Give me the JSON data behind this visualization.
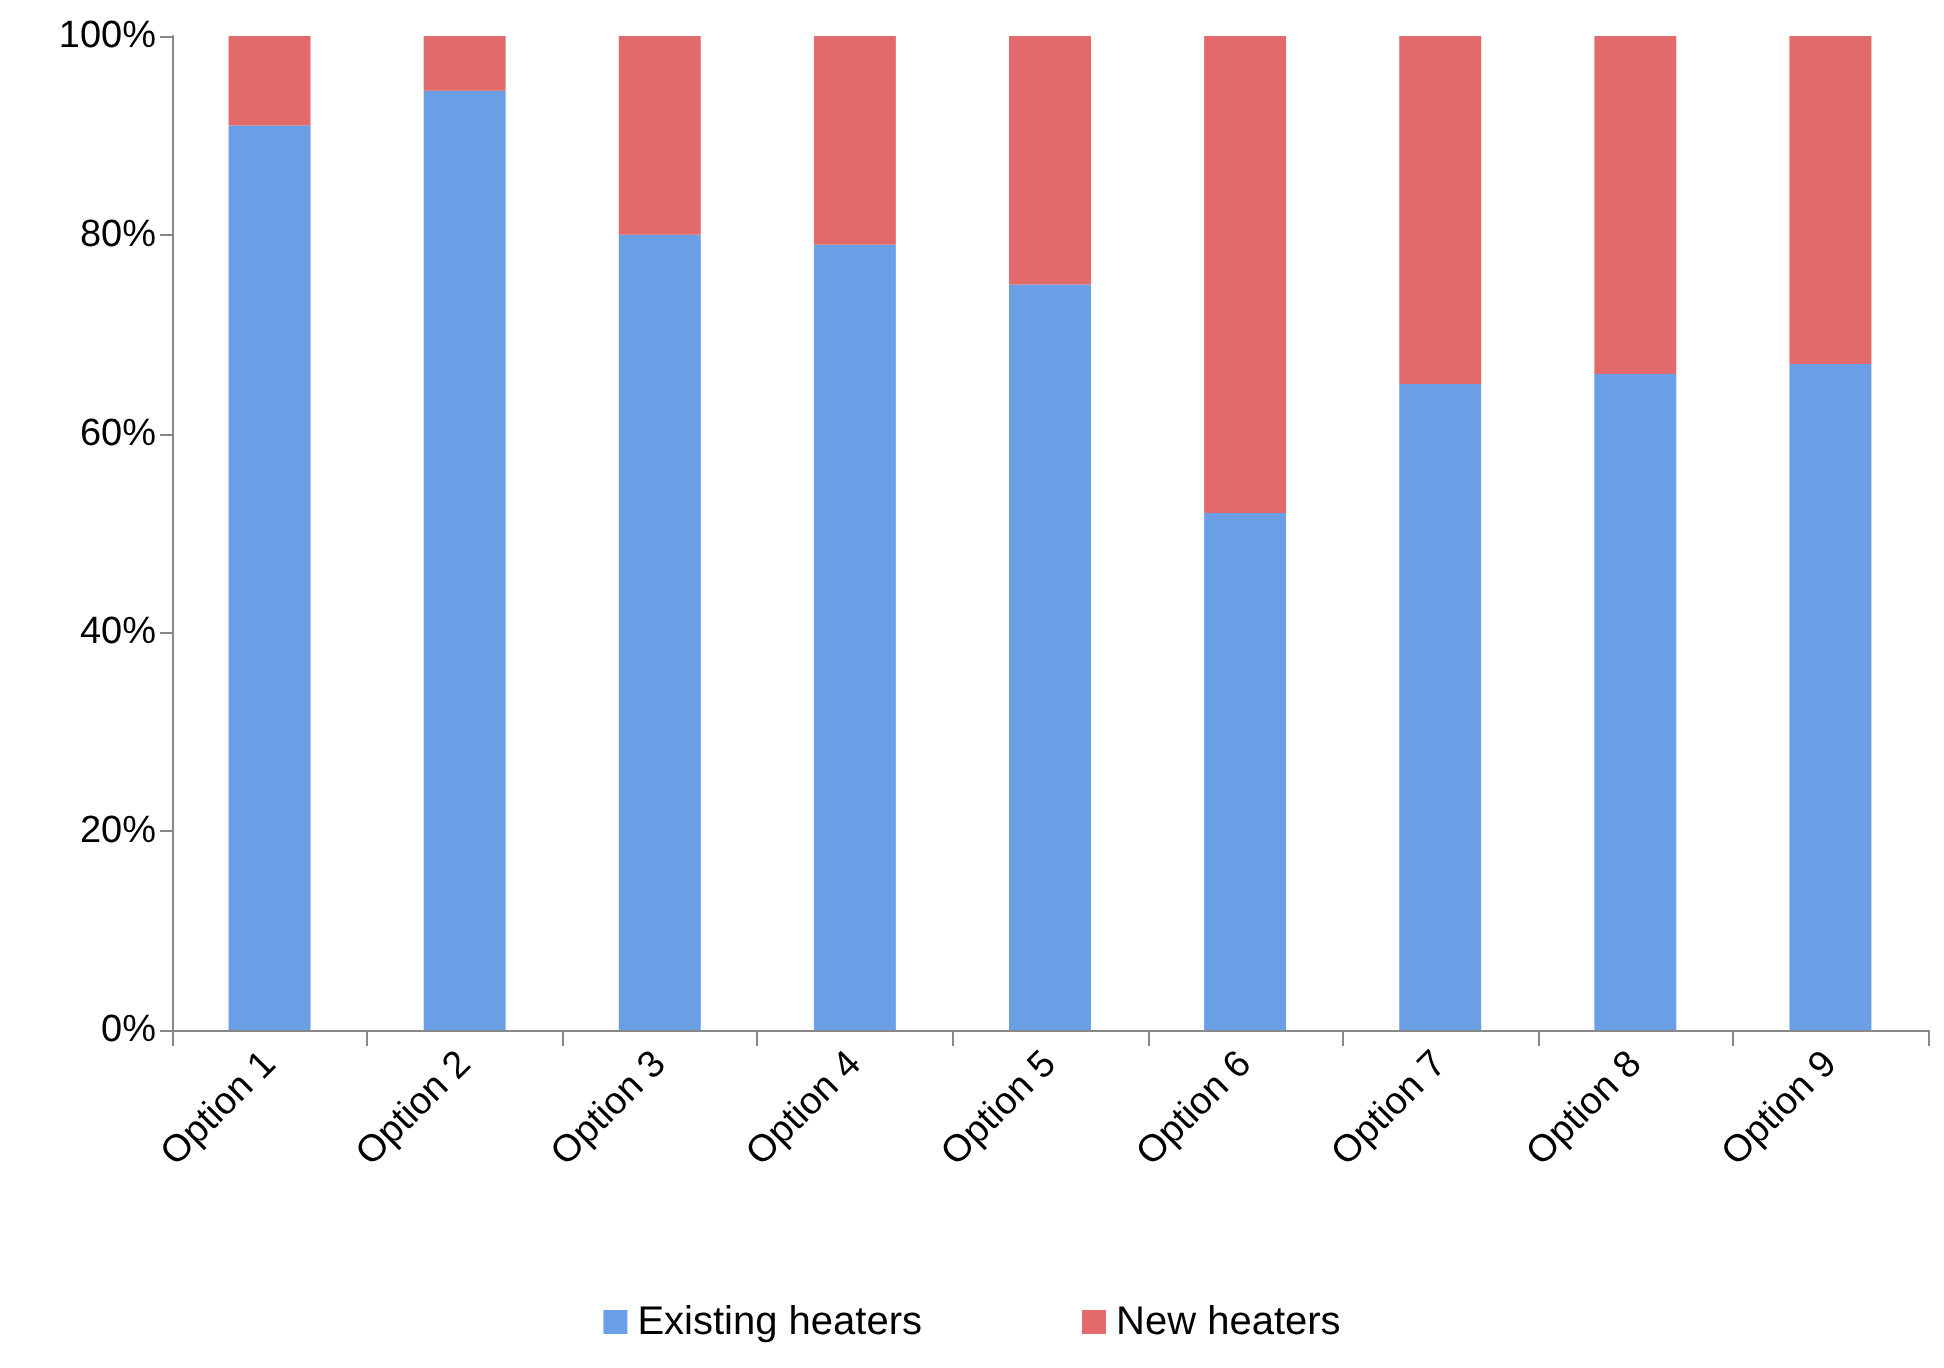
{
  "chart_data": {
    "type": "bar",
    "stacked": true,
    "categories": [
      "Option 1",
      "Option 2",
      "Option 3",
      "Option 4",
      "Option 5",
      "Option 6",
      "Option 7",
      "Option 8",
      "Option 9"
    ],
    "series": [
      {
        "name": "Existing heaters",
        "color": "#6a9fe6",
        "values": [
          91,
          94.5,
          80,
          79,
          75,
          52,
          65,
          66,
          67
        ]
      },
      {
        "name": "New heaters",
        "color": "#e26a6a",
        "values": [
          9,
          5.5,
          20,
          21,
          25,
          48,
          35,
          34,
          33
        ]
      }
    ],
    "ylim": [
      0,
      100
    ],
    "yticks": [
      {
        "value": 0,
        "label": "0%"
      },
      {
        "value": 20,
        "label": "20%"
      },
      {
        "value": 40,
        "label": "40%"
      },
      {
        "value": 60,
        "label": "60%"
      },
      {
        "value": 80,
        "label": "80%"
      },
      {
        "value": 100,
        "label": "100%"
      }
    ],
    "grid": false,
    "legend": "bottom"
  }
}
